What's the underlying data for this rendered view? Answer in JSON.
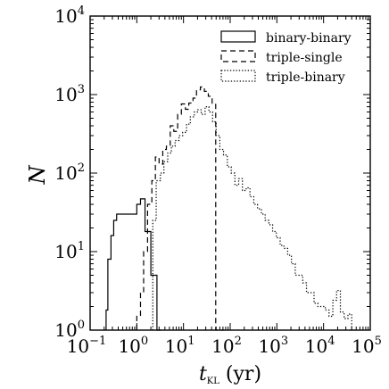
{
  "chart_data": {
    "type": "histogram",
    "x_scale": "log",
    "y_scale": "log",
    "xlim": [
      0.1,
      100000
    ],
    "ylim": [
      1,
      10000
    ],
    "x_tick_labels": [
      {
        "value": 0.1,
        "base": "10",
        "exp": "−1"
      },
      {
        "value": 1,
        "base": "10",
        "exp": "0"
      },
      {
        "value": 10,
        "base": "10",
        "exp": "1"
      },
      {
        "value": 100,
        "base": "10",
        "exp": "2"
      },
      {
        "value": 1000,
        "base": "10",
        "exp": "3"
      },
      {
        "value": 10000,
        "base": "10",
        "exp": "4"
      },
      {
        "value": 100000,
        "base": "10",
        "exp": "5"
      }
    ],
    "y_tick_labels": [
      {
        "value": 1,
        "base": "10",
        "exp": "0"
      },
      {
        "value": 10,
        "base": "10",
        "exp": "1"
      },
      {
        "value": 100,
        "base": "10",
        "exp": "2"
      },
      {
        "value": 1000,
        "base": "10",
        "exp": "3"
      },
      {
        "value": 10000,
        "base": "10",
        "exp": "4"
      }
    ],
    "xlabel": {
      "main": "t",
      "sub": "KL",
      "rest": " (yr)"
    },
    "ylabel": "N",
    "legend_position": "top-right",
    "series": [
      {
        "name": "binary-binary",
        "style": "solid",
        "points": [
          [
            0.22,
            1.8
          ],
          [
            0.24,
            8
          ],
          [
            0.28,
            16
          ],
          [
            0.32,
            25
          ],
          [
            0.37,
            30
          ],
          [
            1.0,
            40
          ],
          [
            1.2,
            47
          ],
          [
            1.5,
            18
          ],
          [
            2.0,
            5
          ],
          [
            2.7,
            1
          ]
        ]
      },
      {
        "name": "triple-single",
        "style": "dashed",
        "points": [
          [
            1.0,
            1.5
          ],
          [
            1.2,
            3
          ],
          [
            1.4,
            10
          ],
          [
            1.7,
            40
          ],
          [
            2.1,
            80
          ],
          [
            2.5,
            160
          ],
          [
            3.0,
            130
          ],
          [
            3.6,
            200
          ],
          [
            4.3,
            220
          ],
          [
            5.2,
            400
          ],
          [
            6.2,
            340
          ],
          [
            7.5,
            560
          ],
          [
            9.0,
            760
          ],
          [
            11,
            650
          ],
          [
            13,
            780
          ],
          [
            16,
            900
          ],
          [
            19,
            1150
          ],
          [
            23,
            1250
          ],
          [
            28,
            1100
          ],
          [
            34,
            950
          ],
          [
            41,
            750
          ],
          [
            49,
            1
          ],
          [
            60,
            1
          ]
        ]
      },
      {
        "name": "triple-binary",
        "style": "dotted",
        "points": [
          [
            2.2,
            25
          ],
          [
            2.6,
            80
          ],
          [
            3.2,
            100
          ],
          [
            3.8,
            140
          ],
          [
            4.6,
            180
          ],
          [
            5.5,
            220
          ],
          [
            6.6,
            260
          ],
          [
            8.0,
            300
          ],
          [
            9.6,
            330
          ],
          [
            11.6,
            420
          ],
          [
            14,
            520
          ],
          [
            17,
            600
          ],
          [
            20,
            640
          ],
          [
            24,
            560
          ],
          [
            29,
            700
          ],
          [
            35,
            600
          ],
          [
            42,
            450
          ],
          [
            50,
            300
          ],
          [
            60,
            200
          ],
          [
            72,
            170
          ],
          [
            87,
            120
          ],
          [
            105,
            100
          ],
          [
            126,
            70
          ],
          [
            152,
            85
          ],
          [
            183,
            60
          ],
          [
            220,
            65
          ],
          [
            265,
            50
          ],
          [
            320,
            40
          ],
          [
            385,
            35
          ],
          [
            465,
            30
          ],
          [
            560,
            25
          ],
          [
            675,
            22
          ],
          [
            810,
            18
          ],
          [
            975,
            15
          ],
          [
            1175,
            12
          ],
          [
            1415,
            11
          ],
          [
            1700,
            9
          ],
          [
            2050,
            7
          ],
          [
            2470,
            5
          ],
          [
            2970,
            5
          ],
          [
            3580,
            4
          ],
          [
            4310,
            3
          ],
          [
            5190,
            3
          ],
          [
            6250,
            2.2
          ],
          [
            7530,
            2
          ],
          [
            9070,
            2
          ],
          [
            10900,
            1.8
          ],
          [
            13100,
            1.5
          ],
          [
            15800,
            2.4
          ],
          [
            19000,
            3.2
          ],
          [
            22900,
            1.7
          ],
          [
            27600,
            1.4
          ],
          [
            33200,
            1.6
          ],
          [
            40000,
            1
          ]
        ]
      }
    ]
  }
}
